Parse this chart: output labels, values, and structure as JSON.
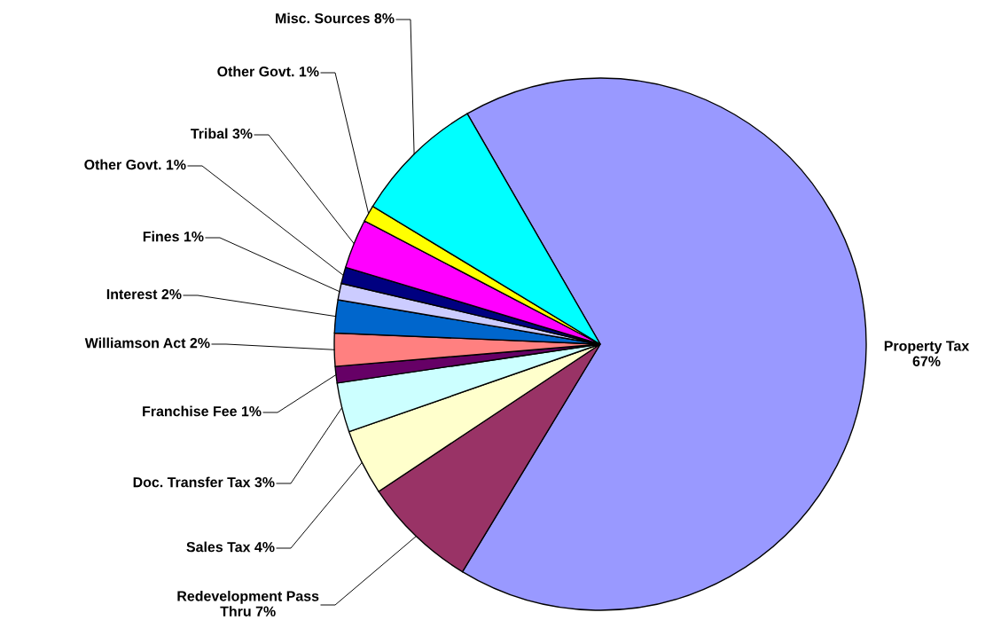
{
  "chart_data": {
    "type": "pie",
    "categories": [
      "Property Tax",
      "Redevelopment Pass Thru",
      "Sales Tax",
      "Doc. Transfer Tax",
      "Franchise Fee",
      "Williamson Act",
      "Interest",
      "Fines",
      "Other Govt.",
      "Tribal",
      "Other Govt.",
      "Misc. Sources"
    ],
    "values": [
      67,
      7,
      4,
      3,
      1,
      2,
      2,
      1,
      1,
      3,
      1,
      8
    ],
    "value_labels": [
      "67%",
      "7%",
      "4%",
      "3%",
      "1%",
      "2%",
      "2%",
      "1%",
      "1%",
      "3%",
      "1%",
      "8%"
    ],
    "colors": [
      "#9999ff",
      "#993366",
      "#ffffcc",
      "#ccffff",
      "#660066",
      "#ff8080",
      "#0066cc",
      "#ccccff",
      "#000080",
      "#ff00ff",
      "#ffff00",
      "#00ffff"
    ]
  }
}
